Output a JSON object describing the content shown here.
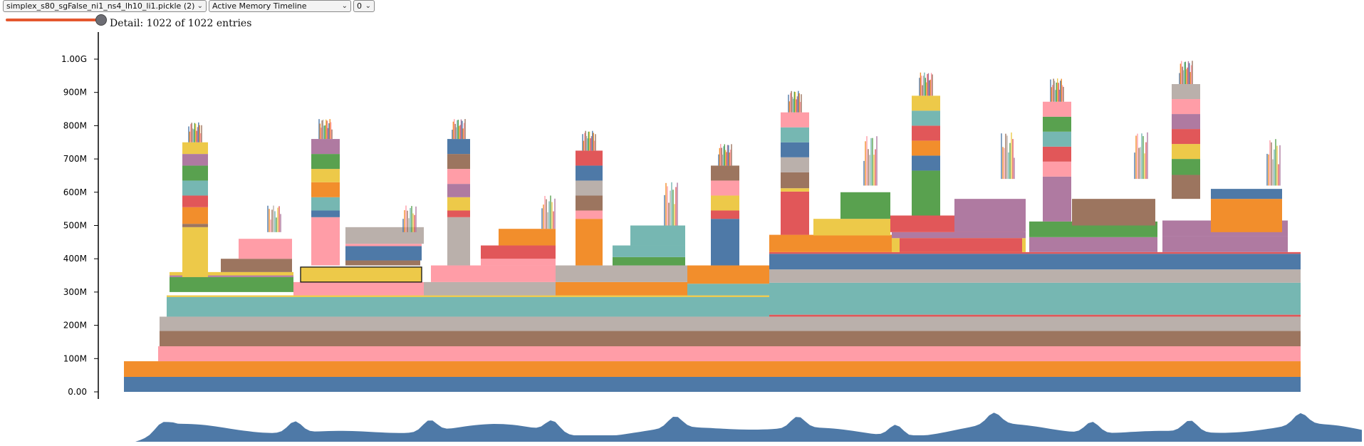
{
  "toolbar": {
    "file_select": "simplex_s80_sgFalse_ni1_ns4_lh10_li1.pickle (2)",
    "view_select": "Active Memory Timeline",
    "index_select": "0"
  },
  "slider": {
    "value_fraction": 1.0
  },
  "detail": {
    "text": "Detail: 1022 of 1022 entries"
  },
  "chart_data": {
    "type": "area",
    "title": "",
    "xlabel": "",
    "ylabel": "",
    "yticks": [
      "0.00",
      "100M",
      "200M",
      "300M",
      "400M",
      "500M",
      "600M",
      "700M",
      "800M",
      "900M",
      "1.00G"
    ],
    "ylim": [
      0,
      1070000000
    ],
    "entries_shown": 1022,
    "entries_total": 1022,
    "peak_memory_approx": "1.02G",
    "palette": [
      "#4e79a7",
      "#f28e2c",
      "#ff9da7",
      "#9c755f",
      "#bab0ab",
      "#76b7b2",
      "#59a14f",
      "#edc949",
      "#e15759",
      "#af7aa1"
    ],
    "minimap_color": "#4e79a7"
  }
}
